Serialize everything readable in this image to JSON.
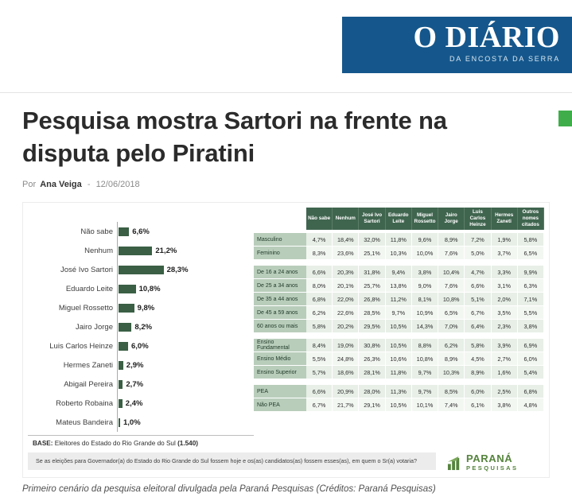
{
  "colors": {
    "brand_blue": "#15578c",
    "corner_teal": "#33a58c",
    "side_green": "#3fae4a",
    "bar_green": "#3a5f44",
    "table_header_green": "#40654f",
    "row_label_green": "#b9cdbb",
    "brand_logo_green": "#55843d"
  },
  "site": {
    "logo_title": "O DIÁRIO",
    "logo_subtitle": "DA ENCOSTA DA SERRA"
  },
  "article": {
    "title_line1": "Pesquisa mostra Sartori na frente na",
    "title_line2": "disputa pelo Piratini",
    "byline_prefix": "Por",
    "author": "Ana Veiga",
    "separator": "-",
    "date": "12/06/2018",
    "caption": "Primeiro cenário da pesquisa eleitoral divulgada pela Paraná Pesquisas (Créditos: Paraná Pesquisas)"
  },
  "chart_data": {
    "type": "bar",
    "orientation": "horizontal",
    "title": "",
    "xlabel": "",
    "ylabel": "",
    "unit": "%",
    "xlim": [
      0,
      30
    ],
    "categories": [
      "Não sabe",
      "Nenhum",
      "José Ivo Sartori",
      "Eduardo Leite",
      "Miguel Rossetto",
      "Jairo Jorge",
      "Luis Carlos Heinze",
      "Hermes Zaneti",
      "Abigail Pereira",
      "Roberto Robaina",
      "Mateus Bandeira"
    ],
    "values": [
      6.6,
      21.2,
      28.3,
      10.8,
      9.8,
      8.2,
      6.0,
      2.9,
      2.7,
      2.4,
      1.0
    ],
    "value_labels": [
      "6,6%",
      "21,2%",
      "28,3%",
      "10,8%",
      "9,8%",
      "8,2%",
      "6,0%",
      "2,9%",
      "2,7%",
      "2,4%",
      "1,0%"
    ]
  },
  "crosstab": {
    "columns": [
      "Não sabe",
      "Nenhum",
      "José Ivo Sartori",
      "Eduardo Leite",
      "Miguel Rossetto",
      "Jairo Jorge",
      "Luis Carlos Heinze",
      "Hermes Zaneti",
      "Outros nomes citados"
    ],
    "groups": [
      {
        "rows": [
          {
            "label": "Masculino",
            "values": [
              "4,7%",
              "18,4%",
              "32,0%",
              "11,8%",
              "9,6%",
              "8,9%",
              "7,2%",
              "1,9%",
              "5,8%"
            ]
          },
          {
            "label": "Feminino",
            "values": [
              "8,3%",
              "23,6%",
              "25,1%",
              "10,3%",
              "10,0%",
              "7,6%",
              "5,0%",
              "3,7%",
              "6,5%"
            ]
          }
        ]
      },
      {
        "rows": [
          {
            "label": "De 16 a 24 anos",
            "values": [
              "6,6%",
              "20,3%",
              "31,8%",
              "9,4%",
              "3,8%",
              "10,4%",
              "4,7%",
              "3,3%",
              "9,9%"
            ]
          },
          {
            "label": "De 25 a 34 anos",
            "values": [
              "8,0%",
              "20,1%",
              "25,7%",
              "13,8%",
              "9,0%",
              "7,6%",
              "6,6%",
              "3,1%",
              "6,3%"
            ]
          },
          {
            "label": "De 35 a 44 anos",
            "values": [
              "6,8%",
              "22,0%",
              "26,8%",
              "11,2%",
              "8,1%",
              "10,8%",
              "5,1%",
              "2,0%",
              "7,1%"
            ]
          },
          {
            "label": "De 45 a 59 anos",
            "values": [
              "6,2%",
              "22,6%",
              "28,5%",
              "9,7%",
              "10,9%",
              "6,5%",
              "6,7%",
              "3,5%",
              "5,5%"
            ]
          },
          {
            "label": "60 anos ou mais",
            "values": [
              "5,8%",
              "20,2%",
              "29,5%",
              "10,5%",
              "14,3%",
              "7,0%",
              "6,4%",
              "2,3%",
              "3,8%"
            ]
          }
        ]
      },
      {
        "rows": [
          {
            "label": "Ensino Fundamental",
            "values": [
              "8,4%",
              "19,0%",
              "30,8%",
              "10,5%",
              "8,8%",
              "6,2%",
              "5,8%",
              "3,9%",
              "6,9%"
            ]
          },
          {
            "label": "Ensino Médio",
            "values": [
              "5,5%",
              "24,8%",
              "26,3%",
              "10,6%",
              "10,8%",
              "8,9%",
              "4,5%",
              "2,7%",
              "6,0%"
            ]
          },
          {
            "label": "Ensino Superior",
            "values": [
              "5,7%",
              "18,6%",
              "28,1%",
              "11,8%",
              "9,7%",
              "10,3%",
              "8,9%",
              "1,6%",
              "5,4%"
            ]
          }
        ]
      },
      {
        "rows": [
          {
            "label": "PEA",
            "values": [
              "6,6%",
              "20,9%",
              "28,0%",
              "11,3%",
              "9,7%",
              "8,5%",
              "6,0%",
              "2,5%",
              "6,8%"
            ]
          },
          {
            "label": "Não PEA",
            "values": [
              "6,7%",
              "21,7%",
              "29,1%",
              "10,5%",
              "10,1%",
              "7,4%",
              "6,1%",
              "3,8%",
              "4,8%"
            ]
          }
        ]
      }
    ]
  },
  "chart_footer": {
    "base_label": "BASE:",
    "base_text": "Eleitores do Estado do Rio Grande do Sul",
    "base_count": "(1.540)",
    "question": "Se as eleições para Governador(a) do Estado do Rio Grande do Sul fossem hoje e os(as) candidatos(as) fossem esses(as), em quem o Sr(a) votaria?"
  },
  "brand": {
    "line1": "PARANÁ",
    "line2": "PESQUISAS"
  }
}
